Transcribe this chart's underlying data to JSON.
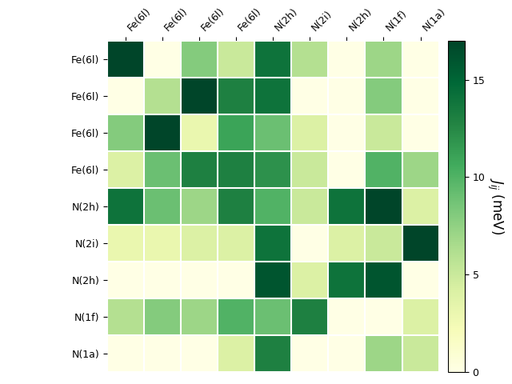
{
  "labels": [
    "Fe(6l)",
    "Fe(6l)",
    "Fe(6l)",
    "Fe(6l)",
    "N(2h)",
    "N(2i)",
    "N(2h)",
    "N(1f)",
    "N(1a)"
  ],
  "matrix": [
    [
      17,
      0,
      8,
      5,
      14,
      6,
      0,
      7,
      0
    ],
    [
      0,
      6,
      17,
      13,
      14,
      0,
      0,
      8,
      0
    ],
    [
      8,
      17,
      3,
      11,
      9,
      4,
      0,
      5,
      0
    ],
    [
      4,
      9,
      13,
      13,
      12,
      5,
      0,
      10,
      7
    ],
    [
      14,
      9,
      7,
      13,
      10,
      5,
      14,
      17,
      4
    ],
    [
      3,
      3,
      4,
      4,
      14,
      0,
      4,
      5,
      17
    ],
    [
      0,
      0,
      0,
      0,
      16,
      4,
      14,
      16,
      0
    ],
    [
      6,
      8,
      7,
      10,
      9,
      13,
      0,
      0,
      4
    ],
    [
      0,
      0,
      0,
      4,
      13,
      0,
      0,
      7,
      5
    ]
  ],
  "vmin": 0,
  "vmax": 17,
  "cmap": "YlGn",
  "colorbar_label": "$J_{ij}$ (meV)",
  "colorbar_ticks": [
    0,
    5,
    10,
    15
  ],
  "figsize": [
    6.4,
    4.8
  ],
  "dpi": 100
}
